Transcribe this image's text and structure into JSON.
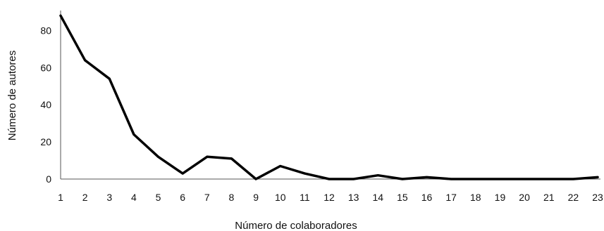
{
  "chart_data": {
    "type": "line",
    "title": "",
    "xlabel": "Número de colaboradores",
    "ylabel": "Número de autores",
    "x": [
      1,
      2,
      3,
      4,
      5,
      6,
      7,
      8,
      9,
      10,
      11,
      12,
      13,
      14,
      15,
      16,
      17,
      18,
      19,
      20,
      21,
      22,
      23
    ],
    "series": [
      {
        "values": [
          88,
          64,
          54,
          24,
          12,
          3,
          12,
          11,
          0,
          7,
          3,
          0,
          0,
          2,
          0,
          1,
          0,
          0,
          0,
          0,
          0,
          0,
          1
        ]
      }
    ],
    "yticks": [
      0,
      20,
      40,
      60,
      80
    ],
    "ylim": [
      0,
      90
    ],
    "grid": false,
    "line_color": "#000000"
  }
}
